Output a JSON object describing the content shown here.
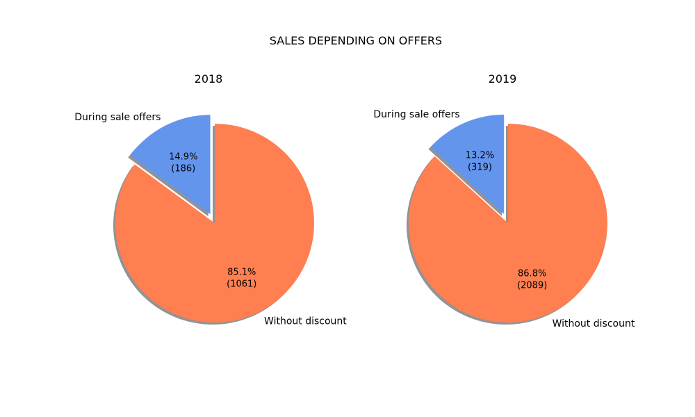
{
  "chart_data": {
    "title": "SALES DEPENDING ON OFFERS",
    "type": "pie",
    "charts": [
      {
        "title": "2018",
        "startangle": 90,
        "explode": [
          0.1,
          0
        ],
        "shadow": true,
        "slices": [
          {
            "label": "During sale offers",
            "value": 186,
            "percent_text": "14.9%",
            "count_text": "(186)",
            "color": "#6495ED"
          },
          {
            "label": "Without discount",
            "value": 1061,
            "percent_text": "85.1%",
            "count_text": "(1061)",
            "color": "#FF7F50"
          }
        ]
      },
      {
        "title": "2019",
        "startangle": 90,
        "explode": [
          0.1,
          0
        ],
        "shadow": true,
        "slices": [
          {
            "label": "During sale offers",
            "value": 319,
            "percent_text": "13.2%",
            "count_text": "(319)",
            "color": "#6495ED"
          },
          {
            "label": "Without discount",
            "value": 2089,
            "percent_text": "86.8%",
            "count_text": "(2089)",
            "color": "#FF7F50"
          }
        ]
      }
    ]
  }
}
